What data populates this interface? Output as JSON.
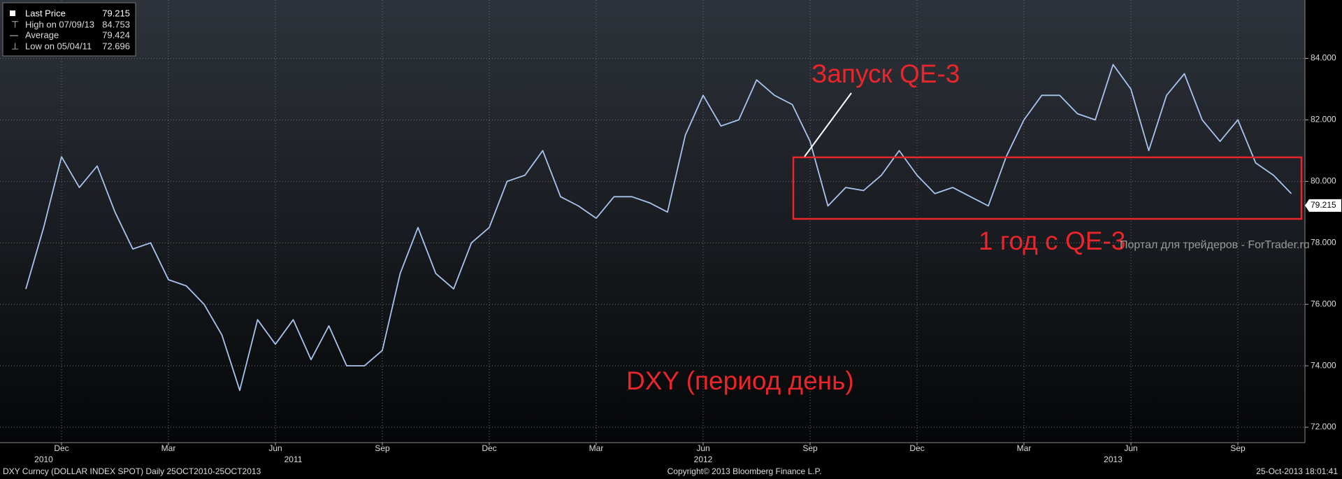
{
  "chart_data": {
    "type": "line",
    "legend": [
      {
        "label": "Last Price",
        "value": 79.215
      },
      {
        "label": "High on 07/09/13",
        "value": 84.753
      },
      {
        "label": "Average",
        "value": 79.424
      },
      {
        "label": "Low on 05/04/11",
        "value": 72.696
      }
    ],
    "last_price_tag": "79.215",
    "annotations": [
      "Запуск QE-3",
      "1 год с QE-3",
      "DXY (период день)"
    ],
    "watermark": "Портал для трейдеров - ForTrader.ru",
    "footer": [
      "DXY Curncy (DOLLAR INDEX SPOT)  Daily 25OCT2010-25OCT2013",
      "Copyright© 2013 Bloomberg Finance L.P.",
      "25-Oct-2013 18:01:41"
    ],
    "categories": [
      null,
      null,
      "Dec",
      null,
      null,
      null,
      null,
      null,
      "Mar",
      null,
      null,
      null,
      null,
      null,
      "Jun",
      null,
      null,
      null,
      null,
      null,
      "Sep",
      null,
      null,
      null,
      null,
      null,
      "Dec",
      null,
      null,
      null,
      null,
      null,
      "Mar",
      null,
      null,
      null,
      null,
      null,
      "Jun",
      null,
      null,
      null,
      null,
      null,
      "Sep",
      null,
      null,
      null,
      null,
      null,
      "Dec",
      null,
      null,
      null,
      null,
      null,
      "Mar",
      null,
      null,
      null,
      null,
      null,
      "Jun",
      null,
      null,
      null,
      null,
      null,
      "Sep",
      null,
      null,
      null
    ],
    "year_labels": [
      null,
      "2010",
      null,
      null,
      null,
      null,
      null,
      null,
      null,
      null,
      null,
      null,
      null,
      null,
      null,
      "2011",
      null,
      null,
      null,
      null,
      null,
      null,
      null,
      null,
      null,
      null,
      null,
      null,
      null,
      null,
      null,
      null,
      null,
      null,
      null,
      null,
      null,
      null,
      "2012",
      null,
      null,
      null,
      null,
      null,
      null,
      null,
      null,
      null,
      null,
      null,
      null,
      null,
      null,
      null,
      null,
      null,
      null,
      null,
      null,
      null,
      null,
      "2013",
      null,
      null,
      null,
      null,
      null,
      null,
      null,
      null,
      null,
      null
    ],
    "series": [
      {
        "name": "Last Price",
        "color": "#a9c4ee",
        "values": [
          76.5,
          78.5,
          80.8,
          79.8,
          80.5,
          79.0,
          77.8,
          78.0,
          76.8,
          76.6,
          76.0,
          75.0,
          73.2,
          75.5,
          74.7,
          75.5,
          74.2,
          75.3,
          74.0,
          74.0,
          74.5,
          77.0,
          78.5,
          77.0,
          76.5,
          78.0,
          78.5,
          80.0,
          80.2,
          81.0,
          79.5,
          79.2,
          78.8,
          79.5,
          79.5,
          79.3,
          79.0,
          81.5,
          82.8,
          81.8,
          82.0,
          83.3,
          82.8,
          82.5,
          81.3,
          79.2,
          79.8,
          79.7,
          80.2,
          81.0,
          80.2,
          79.6,
          79.8,
          79.5,
          79.2,
          80.8,
          82.0,
          82.8,
          82.8,
          82.2,
          82.0,
          83.8,
          83.0,
          81.0,
          82.8,
          83.5,
          82.0,
          81.3,
          82.0,
          80.6,
          80.2,
          79.6
        ]
      }
    ],
    "ylim": [
      71.5,
      85.9
    ],
    "yticks": [
      {
        "value": 72,
        "label": "72.000"
      },
      {
        "value": 74,
        "label": "74.000"
      },
      {
        "value": 76,
        "label": "76.000"
      },
      {
        "value": 78,
        "label": "78.000"
      },
      {
        "value": 80,
        "label": "80.000"
      },
      {
        "value": 82,
        "label": "82.000"
      },
      {
        "value": 84,
        "label": "84.000"
      }
    ],
    "grid": true
  }
}
